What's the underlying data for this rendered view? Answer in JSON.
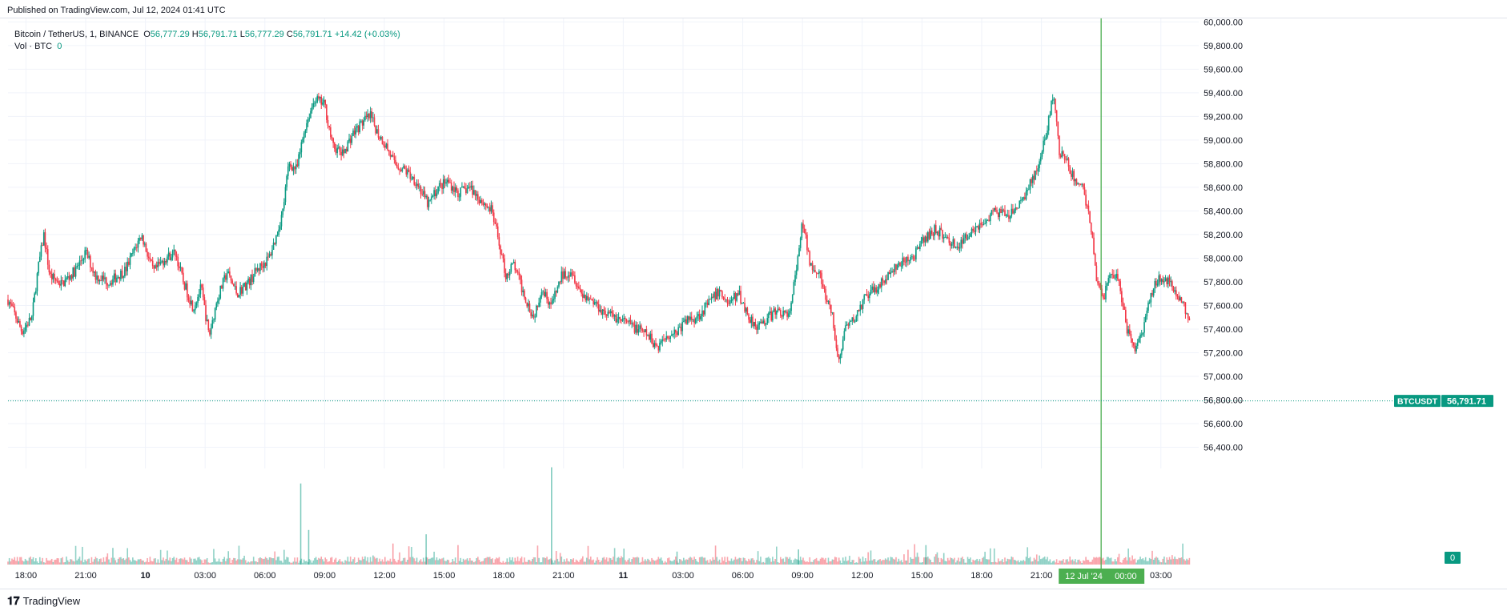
{
  "header": {
    "published": "Published on TradingView.com, Jul 12, 2024 01:41 UTC"
  },
  "legend": {
    "symbol": "Bitcoin / TetherUS, 1, BINANCE",
    "open_label": "O",
    "open": "56,777.29",
    "high_label": "H",
    "high": "56,791.71",
    "low_label": "L",
    "low": "56,777.29",
    "close_label": "C",
    "close": "56,791.71",
    "change": "+14.42 (+0.03%)",
    "volume_label": "Vol · BTC",
    "volume": "0"
  },
  "footer": {
    "brand": "TradingView",
    "logo_glyph": "𝟏𝟕"
  },
  "colors": {
    "up": "#089981",
    "down": "#f23645",
    "grid": "#f0f3fa",
    "vline": "#4caf50",
    "axis_text": "#131722"
  },
  "chart_data": {
    "type": "candlestick",
    "symbol": "BTCUSDT",
    "last_price": "56,791.71",
    "volume_badge": "0",
    "y_ticks": [
      56400,
      56600,
      56800,
      57000,
      57200,
      57400,
      57600,
      57800,
      58000,
      58200,
      58400,
      58600,
      58800,
      59000,
      59200,
      59400,
      59600,
      59800,
      60000
    ],
    "y_tick_labels": [
      "56,400.00",
      "56,600.00",
      "56,800.00",
      "57,000.00",
      "57,200.00",
      "57,400.00",
      "57,600.00",
      "57,800.00",
      "58,000.00",
      "58,200.00",
      "58,400.00",
      "58,600.00",
      "58,800.00",
      "59,000.00",
      "59,200.00",
      "59,400.00",
      "59,600.00",
      "59,800.00",
      "60,000.00"
    ],
    "ylim": [
      56220,
      60030
    ],
    "x_ticks": [
      "18:00",
      "21:00",
      "10",
      "03:00",
      "06:00",
      "09:00",
      "12:00",
      "15:00",
      "18:00",
      "21:00",
      "11",
      "03:00",
      "06:00",
      "09:00",
      "12:00",
      "15:00",
      "18:00",
      "21:00",
      "00:00",
      "03:00"
    ],
    "x_tick_hours": [
      0,
      3,
      6,
      9,
      12,
      15,
      18,
      21,
      24,
      27,
      30,
      33,
      36,
      39,
      42,
      45,
      48,
      51,
      54,
      57
    ],
    "xlim_hours": [
      -0.9,
      58.9
    ],
    "cursor": {
      "label": "12 Jul '24",
      "hour": 54
    },
    "price_path": [
      [
        -0.9,
        57650
      ],
      [
        -0.5,
        57500
      ],
      [
        -0.2,
        57380
      ],
      [
        0.3,
        57500
      ],
      [
        0.6,
        57900
      ],
      [
        0.9,
        58200
      ],
      [
        1.2,
        57850
      ],
      [
        1.8,
        57780
      ],
      [
        2.5,
        57900
      ],
      [
        3.0,
        58050
      ],
      [
        3.5,
        57850
      ],
      [
        4.2,
        57800
      ],
      [
        5.0,
        57900
      ],
      [
        5.8,
        58200
      ],
      [
        6.4,
        57880
      ],
      [
        7.0,
        58000
      ],
      [
        7.5,
        58050
      ],
      [
        7.9,
        57800
      ],
      [
        8.4,
        57580
      ],
      [
        8.8,
        57750
      ],
      [
        9.2,
        57340
      ],
      [
        9.6,
        57650
      ],
      [
        10.1,
        57880
      ],
      [
        10.6,
        57700
      ],
      [
        11.2,
        57800
      ],
      [
        11.6,
        57900
      ],
      [
        12.2,
        58000
      ],
      [
        12.6,
        58200
      ],
      [
        12.9,
        58400
      ],
      [
        13.2,
        58800
      ],
      [
        13.6,
        58750
      ],
      [
        14.0,
        59100
      ],
      [
        14.5,
        59350
      ],
      [
        15.0,
        59300
      ],
      [
        15.4,
        58950
      ],
      [
        15.9,
        58880
      ],
      [
        16.4,
        59050
      ],
      [
        16.9,
        59150
      ],
      [
        17.3,
        59200
      ],
      [
        17.7,
        59050
      ],
      [
        18.1,
        58950
      ],
      [
        18.5,
        58800
      ],
      [
        19.0,
        58750
      ],
      [
        19.6,
        58650
      ],
      [
        20.2,
        58450
      ],
      [
        20.7,
        58600
      ],
      [
        21.2,
        58650
      ],
      [
        21.7,
        58550
      ],
      [
        22.3,
        58600
      ],
      [
        22.8,
        58500
      ],
      [
        23.4,
        58400
      ],
      [
        23.8,
        58100
      ],
      [
        24.1,
        57850
      ],
      [
        24.5,
        57950
      ],
      [
        25.0,
        57700
      ],
      [
        25.5,
        57500
      ],
      [
        25.9,
        57750
      ],
      [
        26.4,
        57600
      ],
      [
        26.9,
        57850
      ],
      [
        27.4,
        57900
      ],
      [
        27.9,
        57700
      ],
      [
        28.4,
        57650
      ],
      [
        29.0,
        57550
      ],
      [
        29.6,
        57500
      ],
      [
        30.2,
        57450
      ],
      [
        30.7,
        57400
      ],
      [
        31.2,
        57350
      ],
      [
        31.7,
        57250
      ],
      [
        32.2,
        57350
      ],
      [
        32.7,
        57380
      ],
      [
        33.2,
        57480
      ],
      [
        33.7,
        57500
      ],
      [
        34.2,
        57600
      ],
      [
        34.8,
        57720
      ],
      [
        35.3,
        57620
      ],
      [
        35.8,
        57700
      ],
      [
        36.3,
        57500
      ],
      [
        36.8,
        57420
      ],
      [
        37.3,
        57500
      ],
      [
        37.8,
        57560
      ],
      [
        38.3,
        57500
      ],
      [
        38.7,
        57900
      ],
      [
        39.0,
        58300
      ],
      [
        39.4,
        57950
      ],
      [
        39.8,
        57900
      ],
      [
        40.1,
        57700
      ],
      [
        40.5,
        57500
      ],
      [
        40.8,
        57100
      ],
      [
        41.1,
        57380
      ],
      [
        41.6,
        57480
      ],
      [
        42.1,
        57650
      ],
      [
        42.7,
        57750
      ],
      [
        43.3,
        57850
      ],
      [
        43.9,
        57950
      ],
      [
        44.5,
        58000
      ],
      [
        45.1,
        58150
      ],
      [
        45.7,
        58250
      ],
      [
        46.3,
        58150
      ],
      [
        46.9,
        58100
      ],
      [
        47.5,
        58250
      ],
      [
        48.1,
        58300
      ],
      [
        48.7,
        58400
      ],
      [
        49.3,
        58350
      ],
      [
        49.9,
        58450
      ],
      [
        50.5,
        58650
      ],
      [
        50.9,
        58800
      ],
      [
        51.3,
        59100
      ],
      [
        51.6,
        59400
      ],
      [
        51.9,
        58900
      ],
      [
        52.3,
        58800
      ],
      [
        52.7,
        58650
      ],
      [
        53.1,
        58600
      ],
      [
        53.5,
        58250
      ],
      [
        53.8,
        57800
      ],
      [
        54.1,
        57650
      ],
      [
        54.5,
        57900
      ],
      [
        54.9,
        57800
      ],
      [
        55.3,
        57400
      ],
      [
        55.7,
        57250
      ],
      [
        56.1,
        57400
      ],
      [
        56.5,
        57700
      ],
      [
        56.9,
        57850
      ],
      [
        57.3,
        57800
      ],
      [
        57.7,
        57750
      ],
      [
        58.1,
        57600
      ],
      [
        58.5,
        57500
      ]
    ],
    "volume_spikes": [
      [
        13.8,
        0.75
      ],
      [
        14.2,
        0.32
      ],
      [
        20.1,
        0.28
      ],
      [
        26.4,
        0.9
      ],
      [
        32.7,
        0.12
      ],
      [
        38.8,
        0.14
      ],
      [
        45.2,
        0.18
      ]
    ]
  }
}
